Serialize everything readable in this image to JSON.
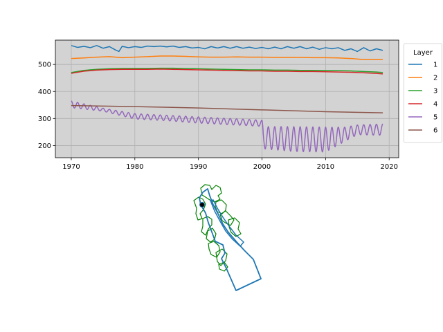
{
  "chart_data": [
    {
      "type": "line",
      "title": "",
      "xlabel": "",
      "ylabel": "",
      "xlim": [
        1967.5,
        2021.5
      ],
      "ylim": [
        155,
        590
      ],
      "xticks": [
        1970,
        1980,
        1990,
        2000,
        2010,
        2020
      ],
      "yticks": [
        200,
        300,
        400,
        500
      ],
      "grid": true,
      "background": "#d3d3d3",
      "legend": {
        "title": "Layer",
        "placement": "outside-right-top"
      },
      "series": [
        {
          "name": "1",
          "color": "#1f77b4",
          "x": [
            1970,
            1971,
            1972,
            1973,
            1974,
            1975,
            1976,
            1977,
            1977.5,
            1978,
            1979,
            1980,
            1981,
            1982,
            1983,
            1984,
            1985,
            1986,
            1987,
            1988,
            1989,
            1990,
            1991,
            1992,
            1993,
            1994,
            1995,
            1996,
            1997,
            1998,
            1999,
            2000,
            2001,
            2002,
            2003,
            2004,
            2005,
            2006,
            2007,
            2008,
            2009,
            2010,
            2011,
            2012,
            2013,
            2014,
            2015,
            2016,
            2017,
            2018,
            2019
          ],
          "y": [
            570,
            563,
            567,
            562,
            570,
            560,
            566,
            553,
            548,
            567,
            562,
            566,
            563,
            568,
            566,
            568,
            565,
            568,
            563,
            566,
            561,
            563,
            558,
            566,
            561,
            566,
            560,
            566,
            560,
            564,
            559,
            563,
            558,
            564,
            558,
            566,
            560,
            566,
            558,
            564,
            556,
            562,
            558,
            562,
            552,
            558,
            548,
            562,
            550,
            558,
            552
          ]
        },
        {
          "name": "2",
          "color": "#ff7f0e",
          "x": [
            1970,
            1972,
            1974,
            1976,
            1978,
            1980,
            1982,
            1984,
            1986,
            1988,
            1990,
            1992,
            1994,
            1996,
            1998,
            2000,
            2002,
            2004,
            2006,
            2008,
            2010,
            2012,
            2014,
            2016,
            2018,
            2019
          ],
          "y": [
            522,
            524,
            527,
            529,
            525,
            527,
            529,
            531,
            531,
            530,
            528,
            527,
            527,
            528,
            527,
            527,
            526,
            526,
            526,
            525,
            525,
            524,
            522,
            518,
            518,
            518
          ]
        },
        {
          "name": "3",
          "color": "#2ca02c",
          "x": [
            1970,
            1972,
            1974,
            1976,
            1978,
            1980,
            1982,
            1984,
            1986,
            1988,
            1990,
            1992,
            1994,
            1996,
            1998,
            2000,
            2002,
            2004,
            2006,
            2008,
            2010,
            2012,
            2014,
            2016,
            2018,
            2019
          ],
          "y": [
            470,
            478,
            482,
            484,
            485,
            485,
            485,
            486,
            486,
            485,
            484,
            483,
            482,
            481,
            480,
            480,
            479,
            479,
            478,
            478,
            478,
            477,
            476,
            474,
            472,
            470
          ]
        },
        {
          "name": "4",
          "color": "#d62728",
          "x": [
            1970,
            1972,
            1974,
            1976,
            1978,
            1980,
            1982,
            1984,
            1986,
            1988,
            1990,
            1992,
            1994,
            1996,
            1998,
            2000,
            2002,
            2004,
            2006,
            2008,
            2010,
            2012,
            2014,
            2016,
            2018,
            2019
          ],
          "y": [
            467,
            475,
            479,
            481,
            482,
            482,
            482,
            483,
            482,
            481,
            480,
            479,
            478,
            477,
            476,
            476,
            475,
            475,
            474,
            474,
            473,
            472,
            471,
            469,
            467,
            465
          ]
        },
        {
          "name": "5",
          "color": "#9467bd",
          "pattern": "seasonal",
          "x": [
            1970,
            1975,
            1980,
            1985,
            1990,
            1995,
            2000,
            2000.2,
            2005,
            2010,
            2013,
            2015,
            2019
          ],
          "y_high": [
            365,
            338,
            318,
            312,
            306,
            300,
            294,
            270,
            270,
            268,
            268,
            276,
            280
          ],
          "y_low": [
            340,
            327,
            298,
            292,
            283,
            277,
            271,
            188,
            178,
            176,
            215,
            240,
            238
          ]
        },
        {
          "name": "6",
          "color": "#8c564b",
          "x": [
            1970,
            1980,
            1990,
            2000,
            2010,
            2019
          ],
          "y": [
            348,
            344,
            339,
            332,
            325,
            321
          ]
        }
      ]
    }
  ]
}
